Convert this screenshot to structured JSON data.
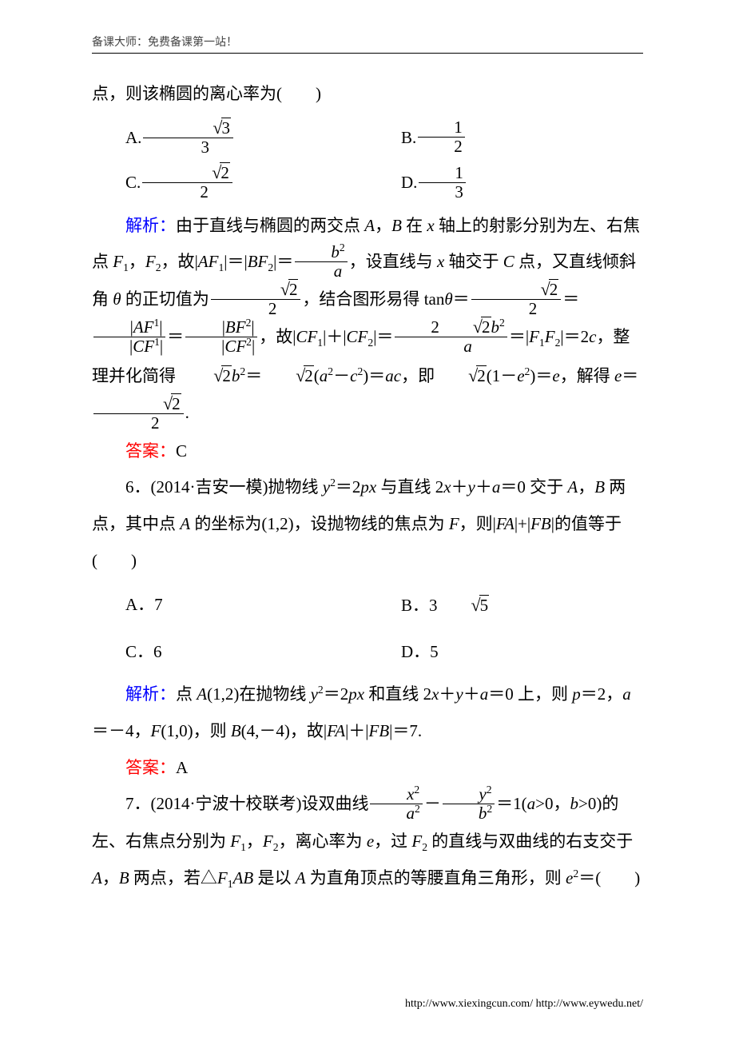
{
  "header": {
    "text": "备课大师：免费备课第一站！"
  },
  "footer": {
    "text": "http://www.xiexingcun.com/ http://www.eywedu.net/"
  },
  "colors": {
    "blue": "#0000ff",
    "red": "#ff0000",
    "black": "#000000",
    "background": "#ffffff"
  },
  "q5": {
    "tail_text": "点，则该椭圆的离心率为(　　)",
    "options": {
      "A_label": "A.",
      "A_num": "3",
      "A_sqrt": "3",
      "B_label": "B.",
      "B_num": "1",
      "B_den": "2",
      "C_label": "C.",
      "C_num": "2",
      "C_sqrt": "2",
      "D_label": "D.",
      "D_num": "1",
      "D_den": "3"
    },
    "analysis_label": "解析：",
    "analysis_line1_a": "由于直线与椭圆的两交点 ",
    "analysis_line1_b": "，",
    "analysis_line1_c": " 在 ",
    "analysis_line1_d": " 轴上的射影分别为左、右焦点 ",
    "analysis_line1_e": "，",
    "analysis_line1_f": "，故",
    "analysis_frac1_num": "b",
    "analysis_frac1_den": "a",
    "analysis_line1_g": "，设直线与 ",
    "analysis_line1_h": " 轴交于 ",
    "analysis_line1_i": " 点，又直线倾斜角 ",
    "analysis_line1_j": " 的正切值为",
    "analysis_sqrt2_over_2_num": "2",
    "analysis_sqrt2_over_2_den": "2",
    "analysis_line1_k": "，结合图形易得 ",
    "analysis_line1_l": "，故",
    "analysis_2sqrt2b2_over_a_num_coef": "2",
    "analysis_2sqrt2b2_over_a_num_sqrt": "2",
    "analysis_line2_a": "，整理并化简得 ",
    "analysis_line2_b": "，即",
    "analysis_line2_c": "，解得 ",
    "analysis_line2_d": ".",
    "answer_label": "答案：",
    "answer": "C"
  },
  "q6": {
    "stem_a": "6．(2014·吉安一模)抛物线 ",
    "stem_b": " 与直线 ",
    "stem_c": " 交于 ",
    "stem_d": "，",
    "stem_e": " 两点，其中点 ",
    "stem_f": " 的坐标为(1,2)，设抛物线的焦点为 ",
    "stem_g": "，则",
    "stem_h": "的值等于(　　)",
    "options": {
      "A_label": "A．",
      "A_val": "7",
      "B_label": "B．",
      "B_val_coef": "3",
      "B_val_sqrt": "5",
      "C_label": "C．",
      "C_val": "6",
      "D_label": "D．",
      "D_val": "5"
    },
    "analysis_label": "解析：",
    "analysis_a": "点 ",
    "analysis_b": "(1,2)在抛物线 ",
    "analysis_c": " 和直线 ",
    "analysis_d": " 上，则 ",
    "analysis_e": "，",
    "analysis_f": "，",
    "analysis_g": "(1,0)，则 ",
    "analysis_h": "(4,－4)，故",
    "analysis_i": "＝7.",
    "answer_label": "答案：",
    "answer": "A"
  },
  "q7": {
    "stem_a": "7．(2014·宁波十校联考)设双曲线",
    "stem_b": "＝1(",
    "stem_c": ">0，",
    "stem_d": ">0)的左、右焦点分别为 ",
    "stem_e": "，",
    "stem_f": "，离心率为 ",
    "stem_g": "，过 ",
    "stem_h": " 的直线与双曲线的右支交于 ",
    "stem_i": "，",
    "stem_j": " 两点，若△",
    "stem_k": " 是以 ",
    "stem_l": " 为直角顶点的等腰直角三角形，则 ",
    "stem_m": "＝(　　)"
  }
}
